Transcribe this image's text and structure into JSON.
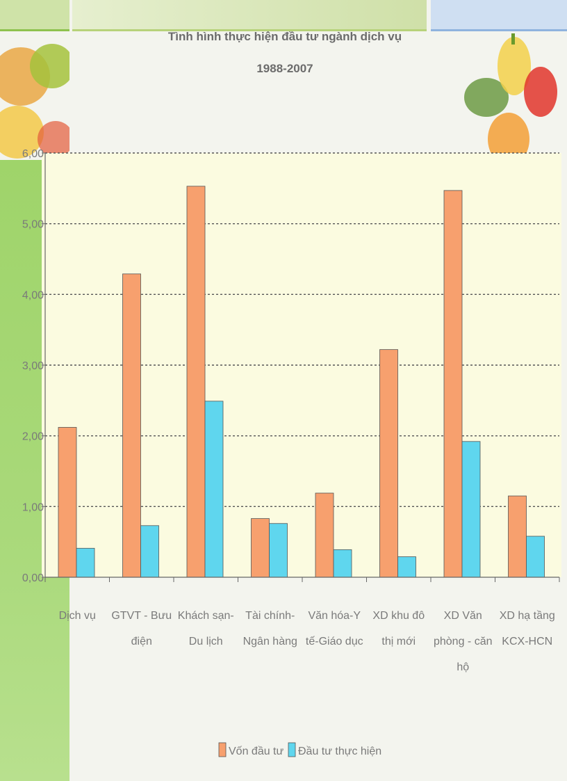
{
  "chart_data": {
    "type": "bar",
    "title_lines": [
      "Tình hình thực hiện đầu tư ngành dịch vụ",
      "1988-2007"
    ],
    "categories": [
      [
        "Dịch vụ"
      ],
      [
        "GTVT - Bưu",
        "điện"
      ],
      [
        "Khách sạn-",
        "Du lịch"
      ],
      [
        "Tài chính-",
        "Ngân hàng"
      ],
      [
        "Văn hóa-Y",
        "tế-Giáo dục"
      ],
      [
        "XD khu đô",
        "thị mới"
      ],
      [
        "XD Văn",
        "phòng - căn",
        "hộ"
      ],
      [
        "XD hạ tầng",
        "KCX-HCN"
      ]
    ],
    "series": [
      {
        "name": "Vốn đầu tư",
        "color": "#f7a06e",
        "values": [
          2.12,
          4.29,
          5.53,
          0.83,
          1.19,
          3.22,
          5.47,
          1.15
        ]
      },
      {
        "name": "Đầu tư thực hiện",
        "color": "#5fd6ee",
        "values": [
          0.41,
          0.73,
          2.49,
          0.76,
          0.39,
          0.29,
          1.92,
          0.58
        ]
      }
    ],
    "yticks": [
      "0,00",
      "1,00",
      "2,00",
      "3,00",
      "4,00",
      "5,00",
      "6,00"
    ],
    "ylim": [
      0,
      6
    ],
    "grid": true,
    "legend_position": "bottom"
  }
}
